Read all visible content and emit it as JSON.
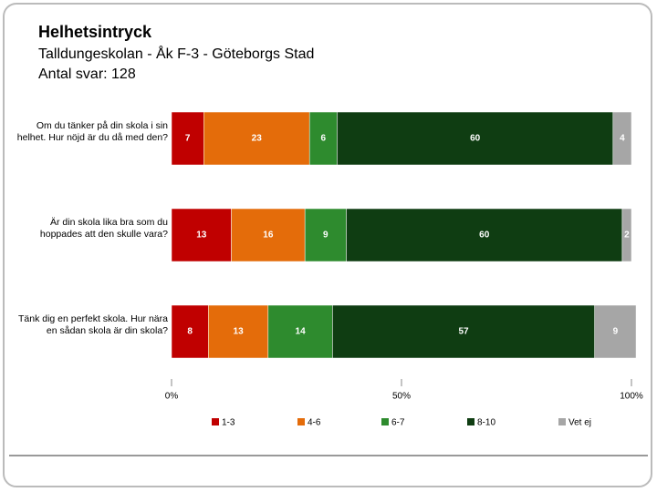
{
  "chart_data": {
    "type": "stacked_barh",
    "title": "Helhetsintryck",
    "subtitle": [
      "Talldungeskolan - Åk F-3 - Göteborgs Stad",
      "Antal svar: 128"
    ],
    "categories": [
      "Om du tänker på din skola i sin helhet. Hur nöjd är du då med den?",
      "Är din skola lika bra som du hoppades att den skulle vara?",
      "Tänk dig en perfekt skola. Hur nära en sådan skola är din skola?"
    ],
    "series": [
      {
        "name": "1-3",
        "color": "#c00000",
        "values": [
          7,
          13,
          8
        ]
      },
      {
        "name": "4-6",
        "color": "#e46c0a",
        "values": [
          23,
          16,
          13
        ]
      },
      {
        "name": "6-7",
        "color": "#2e8b2e",
        "values": [
          6,
          9,
          14
        ]
      },
      {
        "name": "8-10",
        "color": "#0f3d12",
        "values": [
          60,
          60,
          57
        ]
      },
      {
        "name": "Vet ej",
        "color": "#a6a6a6",
        "values": [
          4,
          2,
          9
        ]
      }
    ],
    "xlim": [
      0,
      100
    ],
    "xticks": [
      {
        "value": 0,
        "label": "0%"
      },
      {
        "value": 50,
        "label": "50%"
      },
      {
        "value": 100,
        "label": "100%"
      }
    ]
  }
}
